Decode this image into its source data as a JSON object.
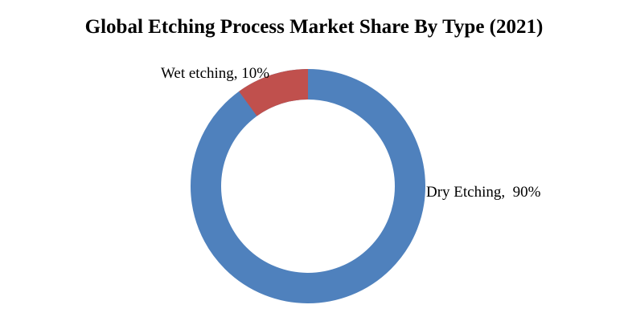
{
  "page": {
    "background": "#FFFFFF"
  },
  "chart_data": {
    "type": "pie",
    "subtype": "donut",
    "title": "Global Etching Process Market Share By Type (2021)",
    "categories": [
      "Dry Etching",
      "Wet etching"
    ],
    "values": [
      90,
      10
    ],
    "unit": "%",
    "series": [
      {
        "name": "Dry Etching",
        "value": 90,
        "color": "#4F81BD",
        "data_label": "Dry Etching,  90%",
        "label_position": "right"
      },
      {
        "name": "Wet etching",
        "value": 10,
        "color": "#C0504D",
        "data_label": "Wet etching, 10%",
        "label_position": "upper-left"
      }
    ],
    "start_angle_deg": 0,
    "direction": "clockwise",
    "hole_ratio": 0.74,
    "legend": "none",
    "grid": false,
    "background": "#FFFFFF",
    "text_color": "#000000"
  }
}
